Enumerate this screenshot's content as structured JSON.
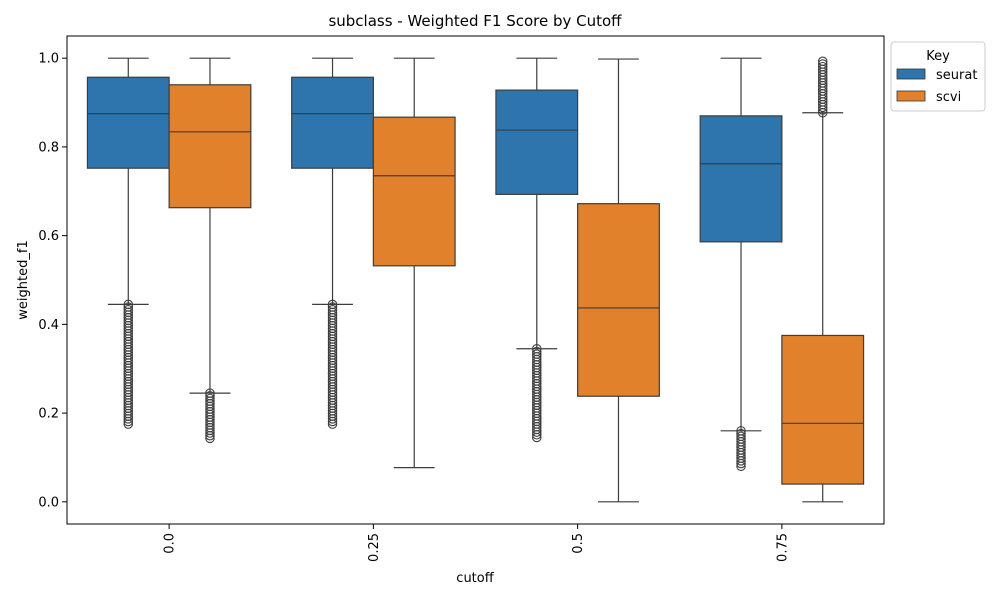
{
  "chart_data": {
    "type": "box",
    "title": "subclass - Weighted F1 Score by Cutoff",
    "xlabel": "cutoff",
    "ylabel": "weighted_f1",
    "categories": [
      "0.0",
      "0.25",
      "0.5",
      "0.75"
    ],
    "ylim": [
      -0.05,
      1.05
    ],
    "yticks": [
      "0.0",
      "0.2",
      "0.4",
      "0.6",
      "0.8",
      "1.0"
    ],
    "legend": {
      "title": "Key",
      "position": "upper-right-outside",
      "entries": [
        "seurat",
        "scvi"
      ]
    },
    "series": [
      {
        "name": "seurat",
        "color": "#2f75ad",
        "boxes": [
          {
            "whisker_low": 0.445,
            "q1": 0.752,
            "median": 0.875,
            "q3": 0.957,
            "whisker_high": 1.0,
            "outliers_min": 0.175,
            "outliers_max": 0.445
          },
          {
            "whisker_low": 0.445,
            "q1": 0.752,
            "median": 0.875,
            "q3": 0.957,
            "whisker_high": 1.0,
            "outliers_min": 0.175,
            "outliers_max": 0.445
          },
          {
            "whisker_low": 0.345,
            "q1": 0.693,
            "median": 0.838,
            "q3": 0.928,
            "whisker_high": 1.0,
            "outliers_min": 0.145,
            "outliers_max": 0.345
          },
          {
            "whisker_low": 0.16,
            "q1": 0.586,
            "median": 0.762,
            "q3": 0.87,
            "whisker_high": 1.0,
            "outliers_min": 0.08,
            "outliers_max": 0.16
          }
        ]
      },
      {
        "name": "scvi",
        "color": "#e1812c",
        "boxes": [
          {
            "whisker_low": 0.245,
            "q1": 0.663,
            "median": 0.834,
            "q3": 0.94,
            "whisker_high": 1.0,
            "outliers_min": 0.143,
            "outliers_max": 0.245
          },
          {
            "whisker_low": 0.077,
            "q1": 0.532,
            "median": 0.735,
            "q3": 0.867,
            "whisker_high": 1.0,
            "outliers_min": null,
            "outliers_max": null
          },
          {
            "whisker_low": 0.0,
            "q1": 0.238,
            "median": 0.437,
            "q3": 0.672,
            "whisker_high": 0.998,
            "outliers_min": null,
            "outliers_max": null
          },
          {
            "whisker_low": 0.0,
            "q1": 0.04,
            "median": 0.177,
            "q3": 0.375,
            "whisker_high": 0.877,
            "outliers_min": 0.877,
            "outliers_max": 0.993
          }
        ]
      }
    ],
    "grid": false
  }
}
